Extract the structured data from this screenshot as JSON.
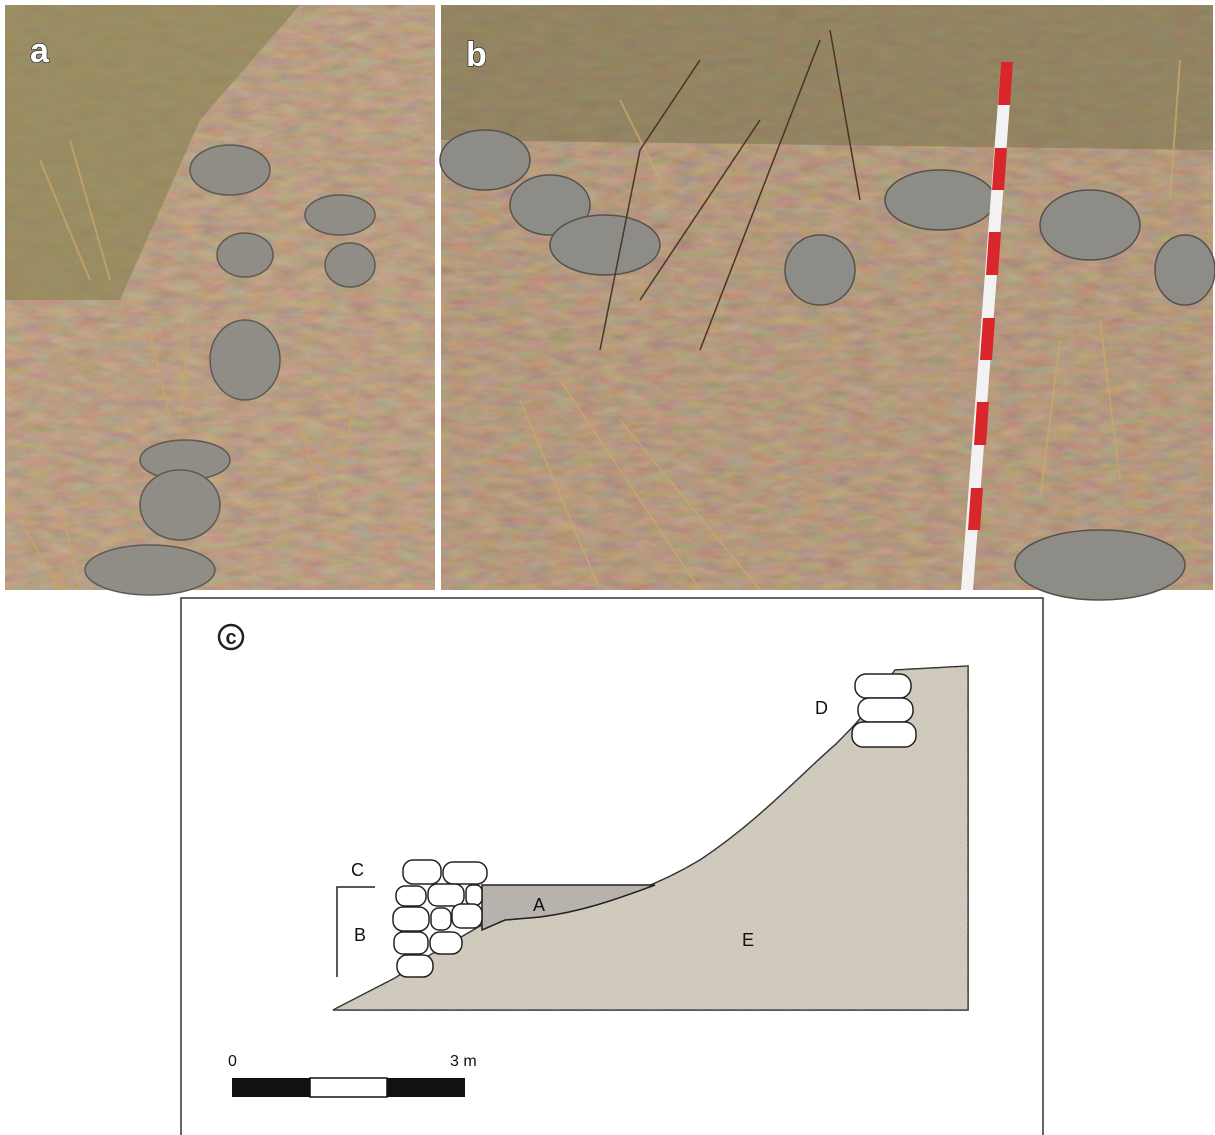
{
  "panels": {
    "a": {
      "label": "a"
    },
    "b": {
      "label": "b"
    },
    "c": {
      "label": "c",
      "layers": {
        "A": "A",
        "B": "B",
        "C": "C",
        "D": "D",
        "E": "E"
      },
      "scale": {
        "start": "0",
        "end": "3 m"
      }
    }
  }
}
